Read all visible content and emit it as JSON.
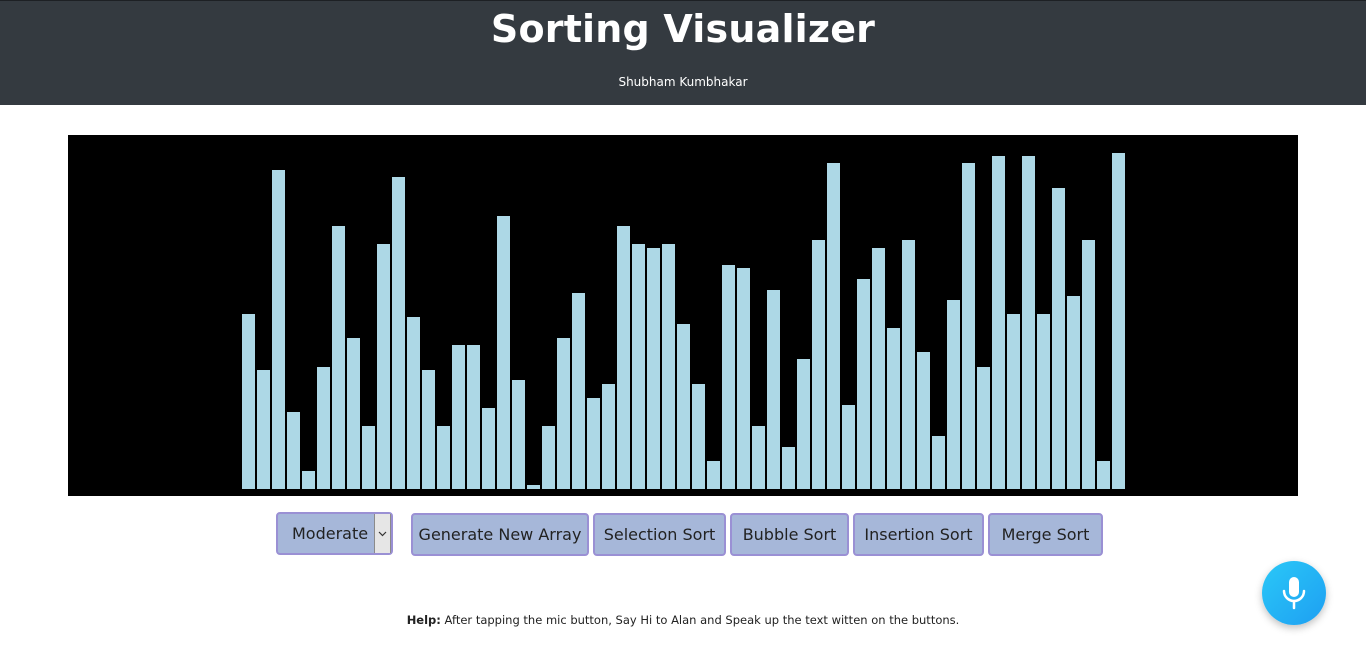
{
  "header": {
    "title": "Sorting Visualizer",
    "author": "Shubham Kumbhakar"
  },
  "colors": {
    "header_bg": "#343a40",
    "canvas_bg": "#000000",
    "bar": "#add8e6",
    "button_bg": "#a6b7d9",
    "button_border": "#9a90d4",
    "mic_button": "#1e9ff2"
  },
  "array": {
    "max_value": 100,
    "values": [
      50,
      34,
      91,
      22,
      5,
      35,
      75,
      43,
      18,
      70,
      89,
      49,
      34,
      18,
      41,
      41,
      23,
      78,
      31,
      1,
      18,
      43,
      56,
      26,
      30,
      75,
      70,
      69,
      70,
      47,
      30,
      8,
      64,
      63,
      18,
      57,
      12,
      37,
      71,
      93,
      24,
      60,
      69,
      46,
      71,
      39,
      15,
      54,
      93,
      35,
      95,
      50,
      95,
      50,
      86,
      55,
      71,
      8,
      96
    ]
  },
  "controls": {
    "speed": {
      "selected": "Moderate",
      "icon": "chevron-down-icon"
    },
    "buttons": {
      "generate": "Generate New Array",
      "selection": "Selection Sort",
      "bubble": "Bubble Sort",
      "insertion": "Insertion Sort",
      "merge": "Merge Sort"
    }
  },
  "help": {
    "label": "Help:",
    "text": "After tapping the mic button, Say Hi to Alan and Speak up the text witten on the buttons."
  },
  "mic": {
    "icon": "microphone-icon"
  }
}
